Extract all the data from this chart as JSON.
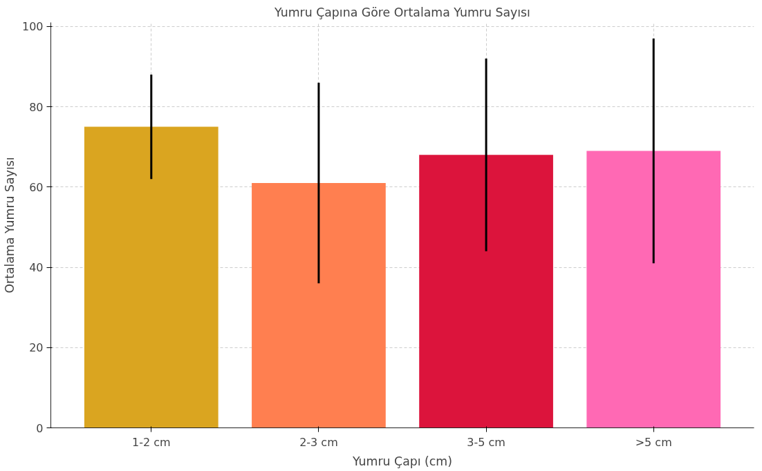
{
  "chart_data": {
    "type": "bar",
    "title": "Yumru Çapına Göre Ortalama Yumru Sayısı",
    "xlabel": "Yumru Çapı (cm)",
    "ylabel": "Ortalama Yumru Sayısı",
    "categories": [
      "1-2 cm",
      "2-3 cm",
      "3-5 cm",
      ">5 cm"
    ],
    "values": [
      75,
      61,
      68,
      69
    ],
    "colors": [
      "#daa520",
      "#ff7f50",
      "#dc143c",
      "#ff69b4"
    ],
    "errors": [
      [
        62,
        88
      ],
      [
        36,
        86
      ],
      [
        44,
        92
      ],
      [
        41,
        97
      ]
    ],
    "ylim": [
      0,
      101
    ],
    "yticks": [
      0,
      20,
      40,
      60,
      80,
      100
    ],
    "grid": true
  }
}
